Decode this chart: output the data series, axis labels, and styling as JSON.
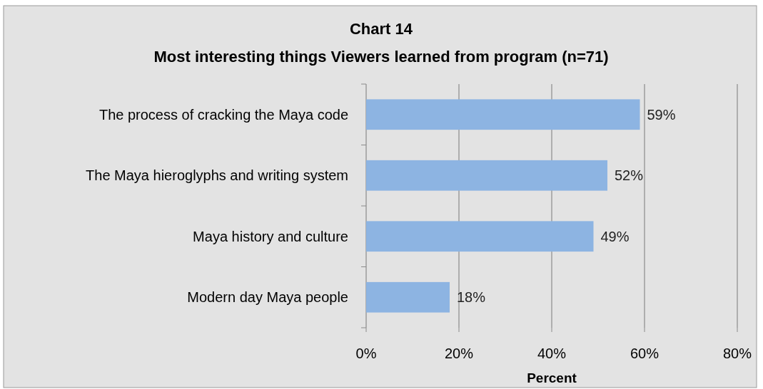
{
  "chart_data": {
    "type": "bar",
    "orientation": "horizontal",
    "title": "Chart 14",
    "subtitle": "Most interesting things Viewers learned from program (n=71)",
    "xlabel": "Percent",
    "categories": [
      "The process of cracking the Maya code",
      "The Maya hieroglyphs and writing system",
      "Maya history and culture",
      "Modern day Maya people"
    ],
    "values": [
      59,
      52,
      49,
      18
    ],
    "value_labels": [
      "59%",
      "52%",
      "49%",
      "18%"
    ],
    "color": "#8db4e2",
    "xlim": [
      0,
      80
    ],
    "xticks": [
      {
        "value": 0,
        "label": "0%"
      },
      {
        "value": 20,
        "label": "20%"
      },
      {
        "value": 40,
        "label": "40%"
      },
      {
        "value": 60,
        "label": "60%"
      },
      {
        "value": 80,
        "label": "80%"
      }
    ],
    "grid": "x"
  }
}
